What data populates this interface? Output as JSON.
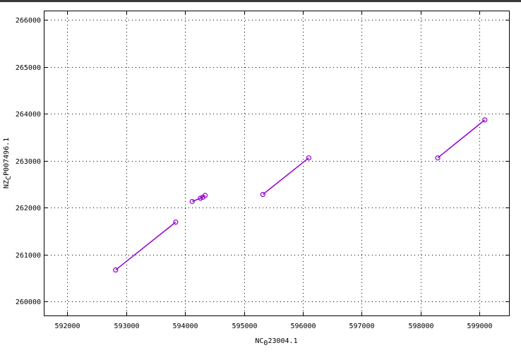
{
  "chart_data": {
    "type": "line",
    "title": "",
    "xlabel": "NC_023004.1",
    "ylabel": "NZ_CP007496.1",
    "xlim": [
      591600,
      599500
    ],
    "ylim": [
      259700,
      266200
    ],
    "grid": true,
    "line_color": "#9400d3",
    "x_ticks": [
      592000,
      593000,
      594000,
      595000,
      596000,
      597000,
      598000,
      599000
    ],
    "y_ticks": [
      260000,
      261000,
      262000,
      263000,
      264000,
      265000,
      266000
    ],
    "segments": [
      {
        "x": [
          592820,
          593840
        ],
        "y": [
          260670,
          261690
        ]
      },
      {
        "x": [
          594120,
          594300
        ],
        "y": [
          262130,
          262220
        ]
      },
      {
        "x": [
          594260,
          594340
        ],
        "y": [
          262200,
          262260
        ]
      },
      {
        "x": [
          595320,
          596100
        ],
        "y": [
          262280,
          263060
        ]
      },
      {
        "x": [
          598290,
          599090
        ],
        "y": [
          263060,
          263870
        ]
      }
    ]
  }
}
